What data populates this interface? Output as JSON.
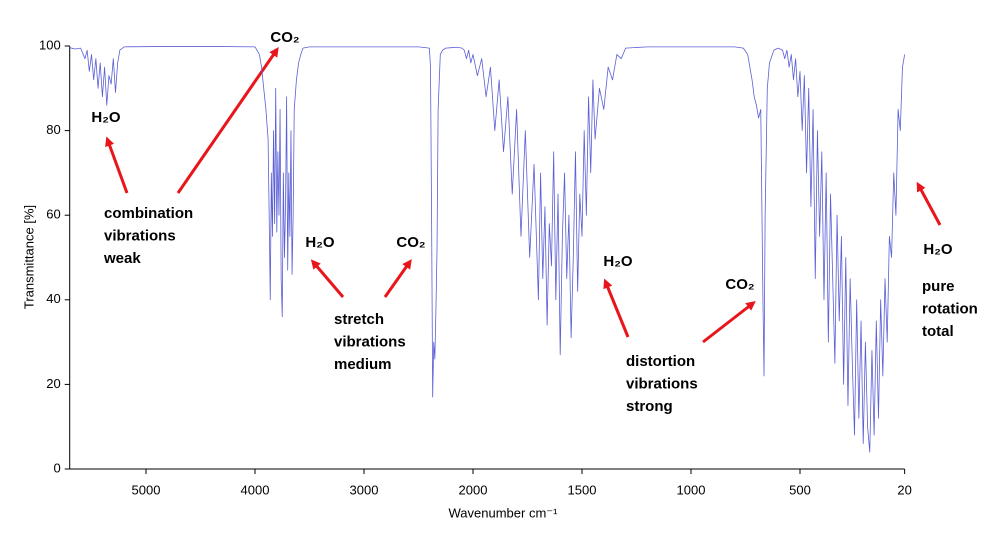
{
  "chart_data": {
    "type": "line",
    "xlabel": "Wavenumber cm⁻¹",
    "ylabel": "Transmittance [%]",
    "xlim": [
      5700,
      20
    ],
    "xticks": [
      5000,
      4000,
      3000,
      2000,
      1500,
      1000,
      500,
      20
    ],
    "ylim": [
      0,
      100
    ],
    "yticks": [
      0,
      20,
      40,
      60,
      80,
      100
    ],
    "grid": false,
    "annotations": [
      {
        "lines": [
          "CO₂"
        ]
      },
      {
        "lines": [
          "H₂O"
        ]
      },
      {
        "lines": [
          "combination",
          "vibrations",
          "weak"
        ]
      },
      {
        "lines": [
          "H₂O"
        ]
      },
      {
        "lines": [
          "CO₂"
        ]
      },
      {
        "lines": [
          "stretch",
          "vibrations",
          "medium"
        ]
      },
      {
        "lines": [
          "H₂O"
        ]
      },
      {
        "lines": [
          "CO₂"
        ]
      },
      {
        "lines": [
          "distortion",
          "vibrations",
          "strong"
        ]
      },
      {
        "lines": [
          "H₂O"
        ]
      },
      {
        "lines": [
          "pure",
          "rotation",
          "total"
        ]
      }
    ],
    "series": [
      {
        "color": "#5b5fd6",
        "x": [
          5700,
          5650,
          5600,
          5560,
          5540,
          5520,
          5500,
          5480,
          5460,
          5440,
          5420,
          5400,
          5380,
          5360,
          5340,
          5320,
          5300,
          5280,
          5260,
          5240,
          5200,
          4800,
          4400,
          4000,
          3960,
          3940,
          3920,
          3900,
          3880,
          3870,
          3860,
          3850,
          3840,
          3830,
          3820,
          3810,
          3800,
          3790,
          3780,
          3770,
          3760,
          3750,
          3740,
          3730,
          3720,
          3710,
          3700,
          3690,
          3680,
          3670,
          3660,
          3650,
          3640,
          3620,
          3600,
          3580,
          3560,
          3500,
          3000,
          2500,
          2400,
          2390,
          2380,
          2370,
          2360,
          2350,
          2340,
          2330,
          2320,
          2300,
          2280,
          2250,
          2200,
          2150,
          2100,
          2080,
          2060,
          2040,
          2020,
          2000,
          1980,
          1960,
          1940,
          1920,
          1900,
          1880,
          1860,
          1840,
          1820,
          1800,
          1780,
          1760,
          1740,
          1720,
          1700,
          1690,
          1680,
          1670,
          1660,
          1650,
          1640,
          1630,
          1620,
          1610,
          1600,
          1590,
          1580,
          1570,
          1560,
          1550,
          1540,
          1530,
          1520,
          1510,
          1500,
          1490,
          1480,
          1470,
          1460,
          1450,
          1440,
          1420,
          1400,
          1380,
          1360,
          1340,
          1320,
          1300,
          1200,
          1000,
          800,
          760,
          740,
          720,
          710,
          700,
          690,
          680,
          670,
          665,
          660,
          650,
          640,
          620,
          600,
          580,
          570,
          560,
          550,
          540,
          530,
          520,
          510,
          500,
          490,
          480,
          470,
          460,
          450,
          440,
          430,
          420,
          410,
          400,
          390,
          380,
          370,
          360,
          350,
          340,
          330,
          320,
          310,
          300,
          290,
          280,
          270,
          260,
          250,
          240,
          230,
          220,
          210,
          200,
          190,
          180,
          170,
          160,
          150,
          140,
          130,
          120,
          110,
          100,
          90,
          80,
          70,
          60,
          50,
          40,
          30,
          20
        ],
        "values": [
          99.6,
          99.3,
          99.5,
          97,
          99,
          94,
          98,
          92,
          97,
          90,
          96,
          88,
          95,
          86,
          93,
          91,
          97,
          89,
          96,
          99,
          99.8,
          99.9,
          99.9,
          99.8,
          98,
          95,
          90,
          85,
          78,
          60,
          40,
          70,
          55,
          80,
          58,
          90,
          56,
          75,
          60,
          85,
          45,
          36,
          70,
          50,
          62,
          88,
          47,
          70,
          55,
          80,
          46,
          60,
          85,
          92,
          96,
          98,
          99.5,
          99.8,
          99.8,
          99.8,
          99.5,
          95,
          60,
          17,
          30,
          26,
          38,
          52,
          85,
          98,
          99,
          99.5,
          99.6,
          99.7,
          99.5,
          99,
          97,
          99,
          96,
          98,
          93,
          97,
          88,
          95,
          80,
          92,
          75,
          88,
          65,
          85,
          55,
          80,
          50,
          72,
          40,
          70,
          45,
          62,
          34,
          58,
          48,
          75,
          40,
          65,
          27,
          55,
          70,
          45,
          60,
          31,
          50,
          75,
          42,
          65,
          55,
          80,
          60,
          88,
          70,
          92,
          78,
          90,
          85,
          95,
          92,
          98,
          97,
          99.5,
          99.8,
          99.8,
          99.8,
          99.5,
          98,
          92,
          88,
          86,
          83,
          85,
          40,
          22,
          60,
          90,
          96,
          99,
          99.5,
          99,
          97,
          99,
          95,
          98,
          92,
          97,
          88,
          94,
          80,
          93,
          70,
          90,
          62,
          85,
          45,
          80,
          55,
          75,
          40,
          70,
          30,
          65,
          45,
          25,
          60,
          35,
          55,
          20,
          50,
          15,
          45,
          25,
          8,
          40,
          12,
          35,
          6,
          30,
          10,
          4,
          28,
          8,
          35,
          12,
          40,
          22,
          45,
          30,
          55,
          50,
          70,
          60,
          85,
          80,
          95,
          98
        ]
      }
    ]
  }
}
